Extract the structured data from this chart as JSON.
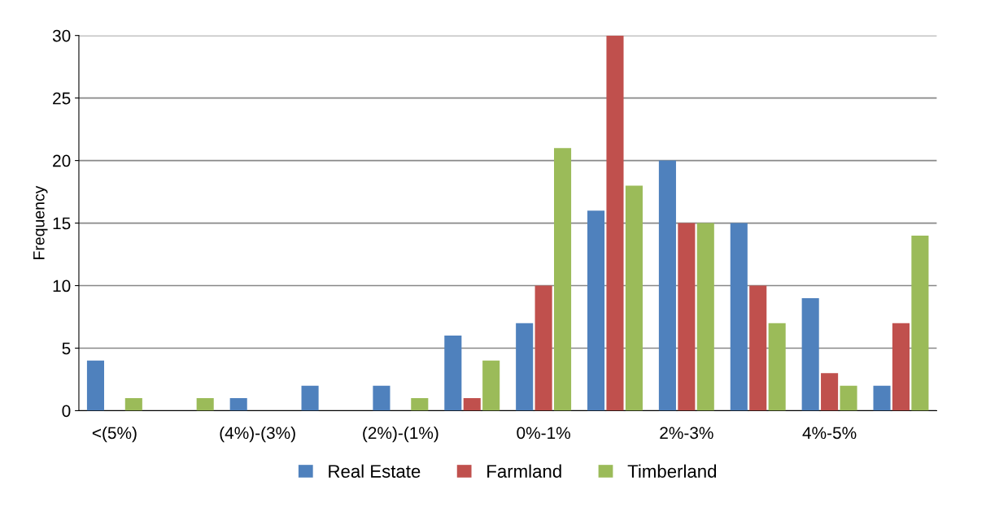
{
  "chart_data": {
    "type": "bar",
    "ylabel": "Frequency",
    "categories": [
      "<(5%)",
      null,
      "(4%)-(3%)",
      null,
      "(2%)-(1%)",
      null,
      "0%-1%",
      null,
      "2%-3%",
      null,
      "4%-5%",
      null
    ],
    "series": [
      {
        "name": "Real Estate",
        "color": "#4f81bd",
        "values": [
          4,
          0,
          1,
          2,
          2,
          6,
          7,
          16,
          20,
          15,
          9,
          2
        ]
      },
      {
        "name": "Farmland",
        "color": "#c0504d",
        "values": [
          0,
          0,
          0,
          0,
          0,
          1,
          10,
          30,
          15,
          10,
          3,
          7
        ]
      },
      {
        "name": "Timberland",
        "color": "#9bbb59",
        "values": [
          1,
          1,
          0,
          0,
          1,
          4,
          21,
          18,
          15,
          7,
          2,
          14
        ]
      }
    ],
    "ylim": [
      0,
      30
    ],
    "yticks": [
      0,
      5,
      10,
      15,
      20,
      25,
      30
    ],
    "grid": "y",
    "legend": "bottom"
  }
}
